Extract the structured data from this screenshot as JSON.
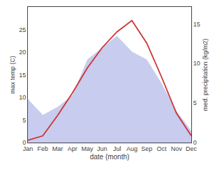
{
  "chart_data": {
    "type": "line",
    "categories": [
      "Jan",
      "Feb",
      "Mar",
      "Apr",
      "May",
      "Jun",
      "Jul",
      "Aug",
      "Sep",
      "Oct",
      "Nov",
      "Dec"
    ],
    "series": [
      {
        "type": "area",
        "color": "#c8ccee",
        "axis": "y2",
        "values": [
          5.5,
          3.5,
          4.5,
          6.0,
          10.5,
          12.0,
          13.5,
          11.5,
          10.5,
          7.5,
          4.0,
          1.5
        ]
      },
      {
        "type": "line",
        "color": "#cc3333",
        "values": [
          0.5,
          1.5,
          6.0,
          11.0,
          16.5,
          21.0,
          24.5,
          27.0,
          22.0,
          14.5,
          6.5,
          1.5
        ]
      }
    ],
    "xlabel": "date (month)",
    "ylabel": "max temp (C)",
    "y2label": "med. precipitation (kg/m2)",
    "ylim": [
      0,
      30
    ],
    "yticks": [
      0,
      5,
      10,
      15,
      20,
      25
    ],
    "y2lim": [
      0,
      17.15
    ],
    "y2ticks": [
      0,
      5,
      10,
      15
    ],
    "grid": false
  }
}
